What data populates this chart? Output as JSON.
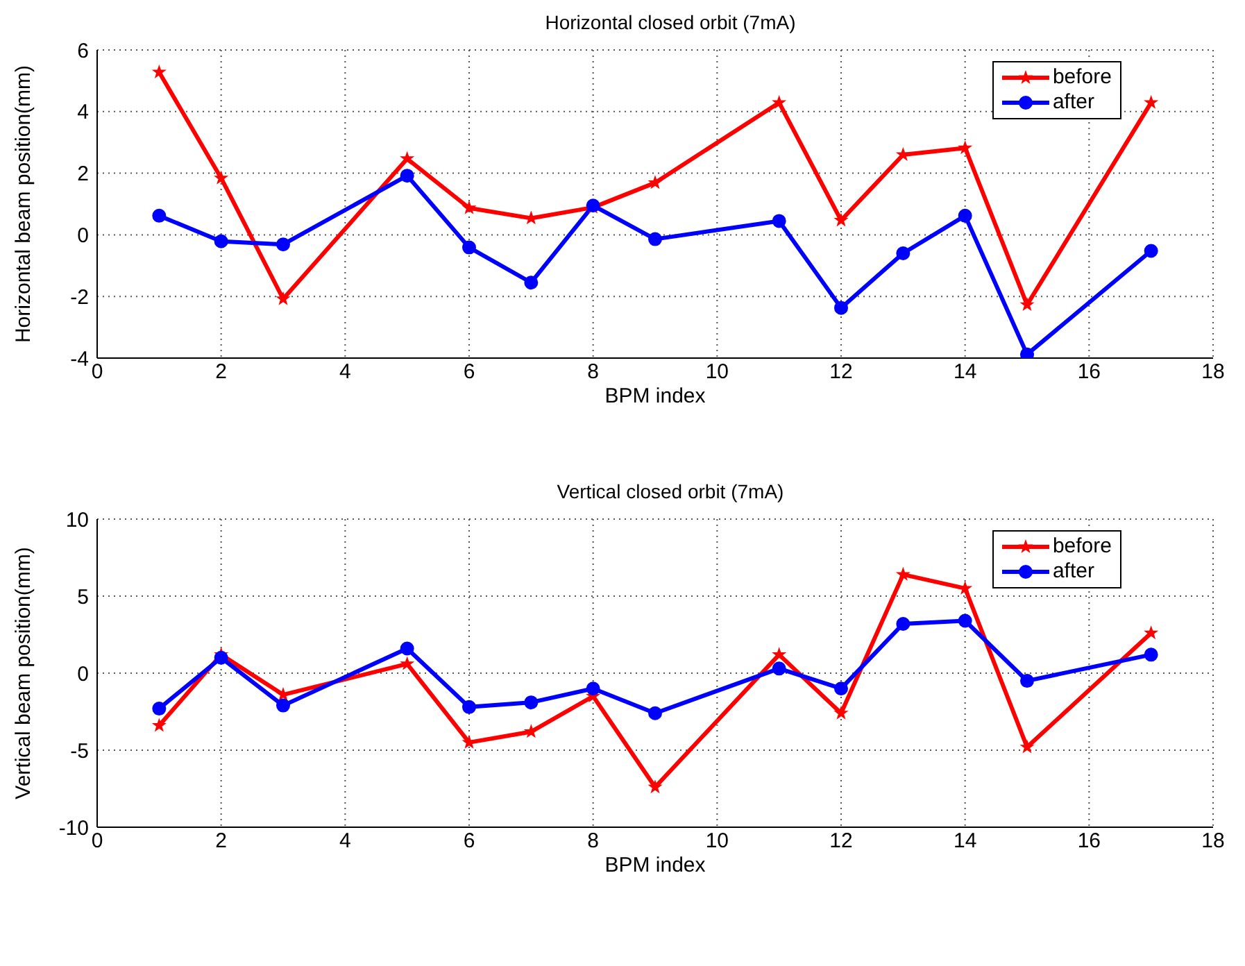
{
  "chart_data": [
    {
      "type": "line",
      "title": "Horizontal closed orbit (7mA)",
      "xlabel": "BPM index",
      "ylabel": "Horizontal beam position(mm)",
      "x": [
        1,
        2,
        3,
        5,
        6,
        7,
        8,
        9,
        11,
        12,
        13,
        14,
        15,
        17
      ],
      "xlim": [
        0,
        18
      ],
      "xticks": [
        0,
        2,
        4,
        6,
        8,
        10,
        12,
        14,
        16,
        18
      ],
      "ylim": [
        -4,
        6
      ],
      "yticks": [
        -4,
        -2,
        0,
        2,
        4,
        6
      ],
      "grid": true,
      "legend": "top right",
      "series": [
        {
          "name": "before",
          "color": "#ff0000",
          "marker": "star",
          "values": [
            5.28,
            1.84,
            -2.08,
            2.47,
            0.87,
            0.54,
            0.89,
            1.69,
            4.29,
            0.47,
            2.6,
            2.82,
            -2.27,
            4.29
          ]
        },
        {
          "name": "after",
          "color": "#0000ff",
          "marker": "circle",
          "values": [
            0.62,
            -0.21,
            -0.31,
            1.92,
            -0.41,
            -1.55,
            0.95,
            -0.14,
            0.45,
            -2.37,
            -0.6,
            0.62,
            -3.88,
            -0.52
          ]
        }
      ]
    },
    {
      "type": "line",
      "title": "Vertical closed orbit (7mA)",
      "xlabel": "BPM index",
      "ylabel": "Vertical beam position(mm)",
      "x": [
        1,
        2,
        3,
        5,
        6,
        7,
        8,
        9,
        11,
        12,
        13,
        14,
        15,
        17
      ],
      "xlim": [
        0,
        18
      ],
      "xticks": [
        0,
        2,
        4,
        6,
        8,
        10,
        12,
        14,
        16,
        18
      ],
      "ylim": [
        -10,
        10
      ],
      "yticks": [
        -10,
        -5,
        0,
        5,
        10
      ],
      "grid": true,
      "legend": "top right",
      "series": [
        {
          "name": "before",
          "color": "#ff0000",
          "marker": "star",
          "values": [
            -3.4,
            1.2,
            -1.4,
            0.6,
            -4.5,
            -3.8,
            -1.5,
            -7.4,
            1.2,
            -2.6,
            6.4,
            5.5,
            -4.8,
            2.6
          ]
        },
        {
          "name": "after",
          "color": "#0000ff",
          "marker": "circle",
          "values": [
            -2.3,
            1.0,
            -2.1,
            1.6,
            -2.2,
            -1.9,
            -1.0,
            -2.6,
            0.3,
            -1.0,
            3.2,
            3.4,
            -0.5,
            1.2
          ]
        }
      ]
    }
  ]
}
